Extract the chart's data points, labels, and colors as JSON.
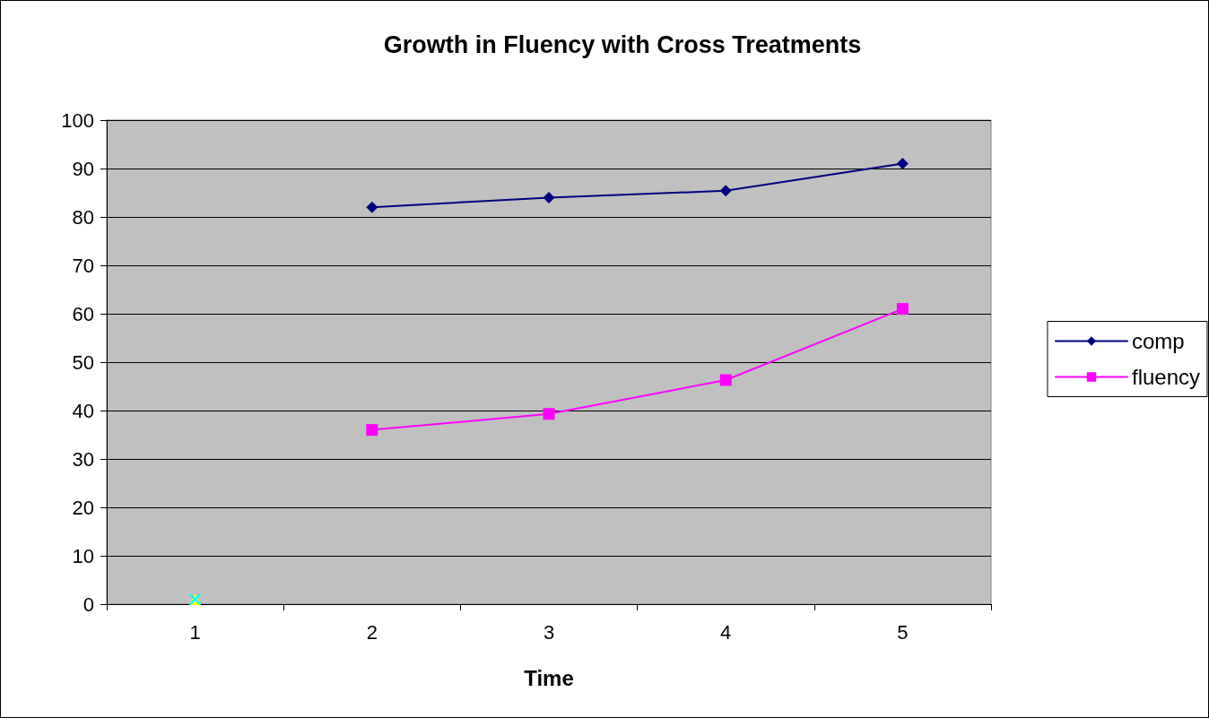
{
  "chart_data": {
    "type": "line",
    "title": "Growth in Fluency with Cross Treatments",
    "xlabel": "Time",
    "categories": [
      "1",
      "2",
      "3",
      "4",
      "5"
    ],
    "series": [
      {
        "name": "comp",
        "color": "#000080",
        "marker": "diamond",
        "values": [
          null,
          82,
          84,
          85.4,
          91
        ]
      },
      {
        "name": "fluency",
        "color": "#ff00ff",
        "marker": "square",
        "values": [
          null,
          36,
          39.3,
          46.3,
          61
        ]
      },
      {
        "color": "#ffff00",
        "marker": "triangle",
        "values": [
          1,
          null,
          null,
          null,
          null
        ]
      },
      {
        "color": "#00ffff",
        "marker": "cross",
        "values": [
          1,
          null,
          null,
          null,
          null
        ]
      }
    ],
    "ylim": [
      0,
      100
    ],
    "yticks": [
      0,
      10,
      20,
      30,
      40,
      50,
      60,
      70,
      80,
      90,
      100
    ],
    "grid": "y",
    "legend": "right"
  }
}
